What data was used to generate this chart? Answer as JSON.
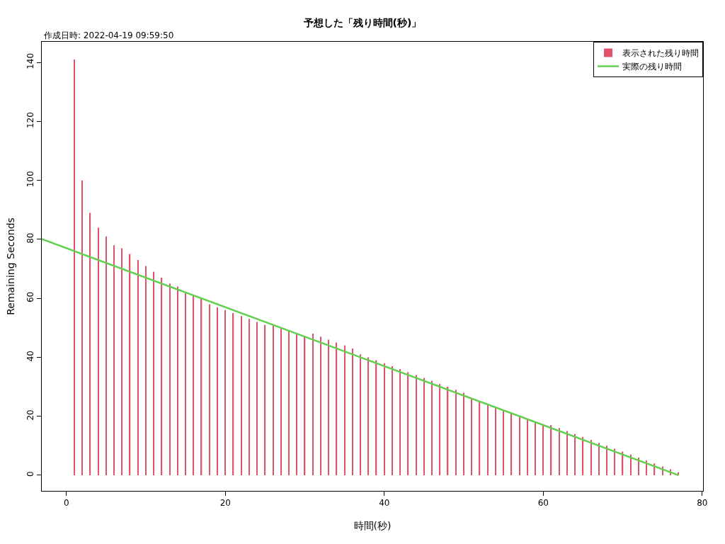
{
  "chart_data": {
    "type": "bar",
    "title": "予想した「残り時間(秒)」",
    "subtitle": "作成日時: 2022-04-19 09:59:50",
    "xlabel": "時間(秒)",
    "ylabel": "Remaining Seconds",
    "x": [
      0,
      1,
      2,
      3,
      4,
      5,
      6,
      7,
      8,
      9,
      10,
      11,
      12,
      13,
      14,
      15,
      16,
      17,
      18,
      19,
      20,
      21,
      22,
      23,
      24,
      25,
      26,
      27,
      28,
      29,
      30,
      31,
      32,
      33,
      34,
      35,
      36,
      37,
      38,
      39,
      40,
      41,
      42,
      43,
      44,
      45,
      46,
      47,
      48,
      49,
      50,
      51,
      52,
      53,
      54,
      55,
      56,
      57,
      58,
      59,
      60,
      61,
      62,
      63,
      64,
      65,
      66,
      67,
      68,
      69,
      70,
      71,
      72,
      73,
      74,
      75,
      76,
      77
    ],
    "series": [
      {
        "name": "表示された残り時間",
        "color": "#df536b",
        "values": [
          0,
          141,
          100,
          89,
          84,
          81,
          78,
          77,
          75,
          73,
          71,
          69,
          67,
          65,
          64,
          62,
          61,
          60,
          58,
          57,
          56,
          55,
          54,
          53,
          52,
          51,
          51,
          50,
          49,
          48,
          47,
          48,
          47,
          46,
          45,
          44,
          43,
          41,
          40,
          39,
          38,
          37,
          36,
          35,
          34,
          33,
          32,
          31,
          30,
          29,
          28,
          26,
          25,
          24,
          23,
          22,
          21,
          20,
          19,
          18,
          17,
          17,
          16,
          15,
          14,
          13,
          12,
          11,
          10,
          9,
          8,
          7,
          6,
          5,
          4,
          3,
          2,
          1
        ]
      },
      {
        "name": "実際の残り時間",
        "type": "line",
        "color": "#61d04f",
        "x": [
          -3.1,
          77
        ],
        "values": [
          80.1,
          0
        ]
      }
    ],
    "xlim": [
      -3.1,
      80.1
    ],
    "xticks": [
      0,
      20,
      40,
      60,
      80
    ],
    "ylim": [
      -5.3,
      147
    ],
    "yticks": [
      0,
      20,
      40,
      60,
      80,
      100,
      120,
      140
    ],
    "legend": "top right",
    "line_style": "solid"
  }
}
